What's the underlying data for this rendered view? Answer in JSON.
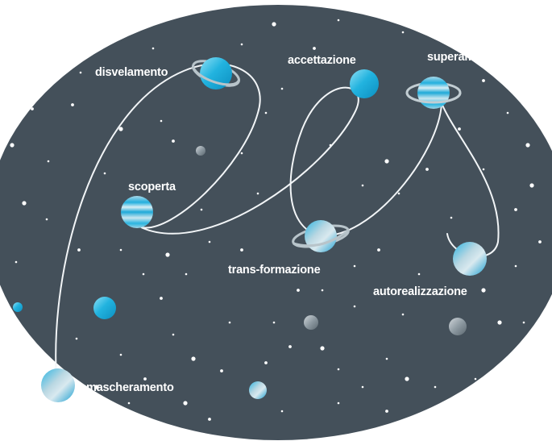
{
  "diagram": {
    "background_color": "#44505a",
    "accent_color": "#1fb0dc",
    "stages": [
      {
        "id": "mascheramento",
        "label": "mascheramento"
      },
      {
        "id": "disvelamento",
        "label": "disvelamento"
      },
      {
        "id": "scoperta",
        "label": "scoperta"
      },
      {
        "id": "accettazione",
        "label": "accettazione"
      },
      {
        "id": "trans-formazione",
        "label": "trans-formazione"
      },
      {
        "id": "superamento",
        "label": "superamento"
      },
      {
        "id": "autorealizzazione",
        "label": "autorealizzazione"
      }
    ],
    "path_order": [
      "mascheramento",
      "disvelamento",
      "scoperta",
      "accettazione",
      "trans-formazione",
      "superamento",
      "autorealizzazione"
    ]
  }
}
